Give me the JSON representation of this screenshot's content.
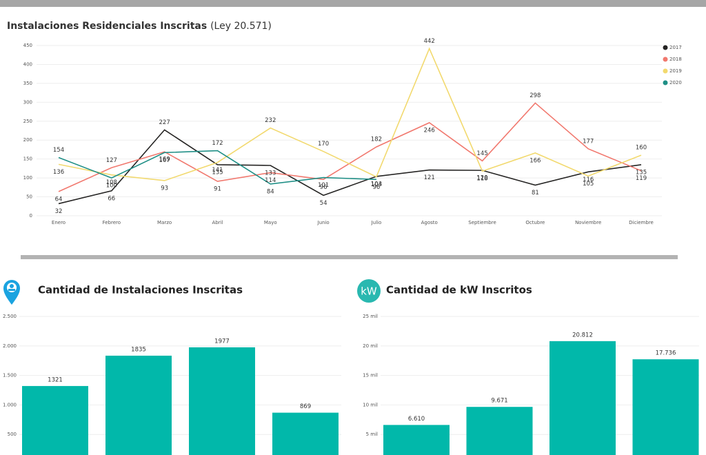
{
  "chart_data": [
    {
      "type": "line",
      "title": "Instalaciones Residenciales Inscritas",
      "subtitle": "(Ley 20.571)",
      "categories": [
        "Enero",
        "Febrero",
        "Marzo",
        "Abril",
        "Mayo",
        "Junio",
        "Julio",
        "Agosto",
        "Septiembre",
        "Octubre",
        "Noviembre",
        "Diciembre"
      ],
      "series": [
        {
          "name": "2017",
          "color": "#252423",
          "values": [
            32,
            66,
            227,
            135,
            133,
            54,
            104,
            121,
            120,
            81,
            116,
            135
          ]
        },
        {
          "name": "2018",
          "color": "#f1786e",
          "values": [
            64,
            127,
            169,
            91,
            114,
            96,
            182,
            246,
            145,
            298,
            177,
            119
          ]
        },
        {
          "name": "2019",
          "color": "#f2d96e",
          "values": [
            136,
            108,
            93,
            141,
            232,
            170,
            103,
            442,
            118,
            166,
            105,
            160
          ]
        },
        {
          "name": "2020",
          "color": "#1f8f86",
          "values": [
            154,
            100,
            167,
            172,
            84,
            101,
            96,
            null,
            null,
            null,
            null,
            null
          ]
        }
      ],
      "ylim": [
        0,
        450
      ],
      "yticks": [
        0,
        50,
        100,
        150,
        200,
        250,
        300,
        350,
        400,
        450
      ],
      "grid": true,
      "legend": "top-right"
    },
    {
      "type": "bar",
      "title": "Cantidad de Instalaciones Inscritas",
      "color": "#01b8aa",
      "values": [
        1321,
        1835,
        1977,
        869
      ],
      "ylim": [
        0,
        2500
      ],
      "yticks": [
        {
          "value": 500,
          "label": "500"
        },
        {
          "value": 1000,
          "label": "1.000"
        },
        {
          "value": 1500,
          "label": "1.500"
        },
        {
          "value": 2000,
          "label": "2.000"
        },
        {
          "value": 2500,
          "label": "2.500"
        }
      ],
      "grid": true
    },
    {
      "type": "bar",
      "title": "Cantidad de kW Inscritos",
      "icon_text": "kW",
      "color": "#01b8aa",
      "values": [
        6610,
        9671,
        20812,
        17736
      ],
      "value_labels": [
        "6.610",
        "9.671",
        "20.812",
        "17.736"
      ],
      "ylim": [
        0,
        25000
      ],
      "yticks": [
        {
          "value": 5000,
          "label": "5 mil"
        },
        {
          "value": 10000,
          "label": "10 mil"
        },
        {
          "value": 15000,
          "label": "15 mil"
        },
        {
          "value": 20000,
          "label": "20 mil"
        },
        {
          "value": 25000,
          "label": "25 mil"
        }
      ],
      "grid": true
    }
  ]
}
